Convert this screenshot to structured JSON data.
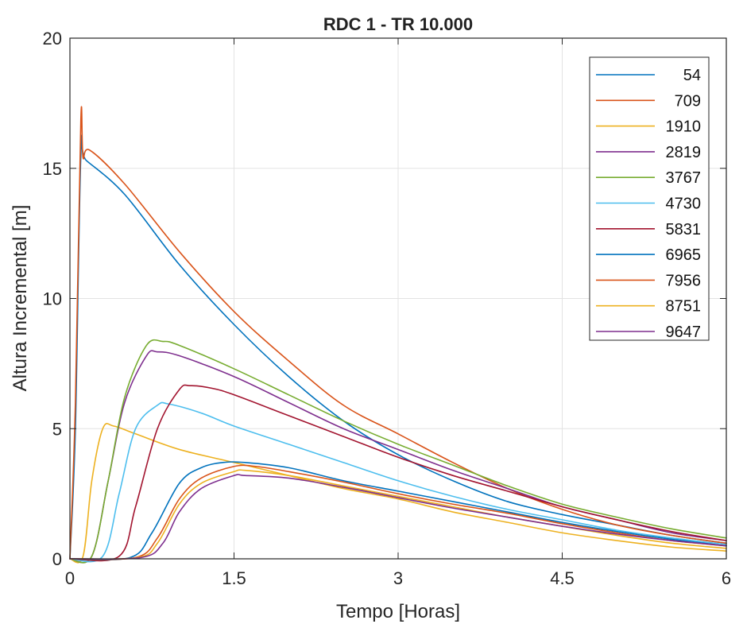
{
  "chart_data": {
    "type": "line",
    "title": "RDC 1 - TR 10.000",
    "xlabel": "Tempo [Horas]",
    "ylabel": "Altura Incremental [m]",
    "xlim": [
      0,
      6
    ],
    "ylim": [
      0,
      20
    ],
    "xticks": [
      "0",
      "1.5",
      "3",
      "4.5",
      "6"
    ],
    "xtick_values": [
      0,
      1.5,
      3,
      4.5,
      6
    ],
    "yticks": [
      "0",
      "5",
      "10",
      "15",
      "20"
    ],
    "ytick_values": [
      0,
      5,
      10,
      15,
      20
    ],
    "grid": true,
    "legend_position": "top-right",
    "series": [
      {
        "name": "54",
        "color": "#0072BD",
        "points": [
          [
            0,
            0
          ],
          [
            0.05,
            5
          ],
          [
            0.1,
            15.5
          ],
          [
            0.15,
            15.3
          ],
          [
            0.5,
            14.0
          ],
          [
            1.0,
            11.3
          ],
          [
            1.5,
            9.0
          ],
          [
            2.0,
            7.0
          ],
          [
            2.5,
            5.3
          ],
          [
            3.0,
            4.0
          ],
          [
            3.5,
            3.0
          ],
          [
            4.0,
            2.2
          ],
          [
            4.5,
            1.7
          ],
          [
            5.0,
            1.3
          ],
          [
            5.5,
            0.9
          ],
          [
            6.0,
            0.6
          ]
        ]
      },
      {
        "name": "709",
        "color": "#D95319",
        "points": [
          [
            0,
            0
          ],
          [
            0.05,
            6
          ],
          [
            0.1,
            16.9
          ],
          [
            0.12,
            15.4
          ],
          [
            0.18,
            15.7
          ],
          [
            0.5,
            14.4
          ],
          [
            1.0,
            11.8
          ],
          [
            1.5,
            9.5
          ],
          [
            2.0,
            7.6
          ],
          [
            2.5,
            5.9
          ],
          [
            3.0,
            4.8
          ],
          [
            3.5,
            3.7
          ],
          [
            4.0,
            2.7
          ],
          [
            4.5,
            1.9
          ],
          [
            5.0,
            1.3
          ],
          [
            5.5,
            0.9
          ],
          [
            6.0,
            0.6
          ]
        ]
      },
      {
        "name": "1910",
        "color": "#EDB120",
        "points": [
          [
            0,
            0
          ],
          [
            0.12,
            0.1
          ],
          [
            0.2,
            3.0
          ],
          [
            0.3,
            5.0
          ],
          [
            0.4,
            5.1
          ],
          [
            0.6,
            4.8
          ],
          [
            1.0,
            4.2
          ],
          [
            1.5,
            3.7
          ],
          [
            2.0,
            3.2
          ],
          [
            2.5,
            2.7
          ],
          [
            3.0,
            2.3
          ],
          [
            3.5,
            1.8
          ],
          [
            4.0,
            1.4
          ],
          [
            4.5,
            1.0
          ],
          [
            5.0,
            0.7
          ],
          [
            5.5,
            0.45
          ],
          [
            6.0,
            0.3
          ]
        ]
      },
      {
        "name": "2819",
        "color": "#7E2F8E",
        "points": [
          [
            0,
            0
          ],
          [
            0.2,
            0.1
          ],
          [
            0.35,
            3.0
          ],
          [
            0.5,
            6.0
          ],
          [
            0.7,
            7.8
          ],
          [
            0.8,
            7.95
          ],
          [
            1.0,
            7.8
          ],
          [
            1.5,
            7.0
          ],
          [
            2.0,
            6.0
          ],
          [
            2.5,
            5.0
          ],
          [
            3.0,
            4.2
          ],
          [
            3.5,
            3.4
          ],
          [
            4.0,
            2.7
          ],
          [
            4.5,
            2.0
          ],
          [
            5.0,
            1.5
          ],
          [
            5.5,
            1.0
          ],
          [
            6.0,
            0.7
          ]
        ]
      },
      {
        "name": "3767",
        "color": "#77AC30",
        "points": [
          [
            0,
            0
          ],
          [
            0.2,
            0.1
          ],
          [
            0.35,
            3.0
          ],
          [
            0.5,
            6.2
          ],
          [
            0.7,
            8.2
          ],
          [
            0.85,
            8.35
          ],
          [
            1.0,
            8.2
          ],
          [
            1.5,
            7.3
          ],
          [
            2.0,
            6.3
          ],
          [
            2.5,
            5.3
          ],
          [
            3.0,
            4.4
          ],
          [
            3.5,
            3.6
          ],
          [
            4.0,
            2.8
          ],
          [
            4.5,
            2.1
          ],
          [
            5.0,
            1.6
          ],
          [
            5.5,
            1.15
          ],
          [
            6.0,
            0.8
          ]
        ]
      },
      {
        "name": "4730",
        "color": "#4DBEEE",
        "points": [
          [
            0,
            0
          ],
          [
            0.3,
            0.1
          ],
          [
            0.45,
            2.5
          ],
          [
            0.6,
            5.0
          ],
          [
            0.8,
            5.9
          ],
          [
            0.9,
            5.95
          ],
          [
            1.2,
            5.6
          ],
          [
            1.5,
            5.1
          ],
          [
            2.0,
            4.4
          ],
          [
            2.5,
            3.7
          ],
          [
            3.0,
            3.0
          ],
          [
            3.5,
            2.4
          ],
          [
            4.0,
            1.9
          ],
          [
            4.5,
            1.5
          ],
          [
            5.0,
            1.1
          ],
          [
            5.5,
            0.8
          ],
          [
            6.0,
            0.55
          ]
        ]
      },
      {
        "name": "5831",
        "color": "#A2142F",
        "points": [
          [
            0,
            0
          ],
          [
            0.45,
            0.1
          ],
          [
            0.6,
            2.0
          ],
          [
            0.8,
            5.0
          ],
          [
            1.0,
            6.5
          ],
          [
            1.1,
            6.65
          ],
          [
            1.3,
            6.55
          ],
          [
            1.5,
            6.3
          ],
          [
            2.0,
            5.5
          ],
          [
            2.5,
            4.7
          ],
          [
            3.0,
            3.9
          ],
          [
            3.5,
            3.2
          ],
          [
            4.0,
            2.6
          ],
          [
            4.5,
            2.0
          ],
          [
            5.0,
            1.5
          ],
          [
            5.5,
            1.05
          ],
          [
            6.0,
            0.7
          ]
        ]
      },
      {
        "name": "6965",
        "color": "#0072BD",
        "points": [
          [
            0,
            0
          ],
          [
            0.55,
            0.05
          ],
          [
            0.75,
            1.0
          ],
          [
            1.0,
            2.9
          ],
          [
            1.2,
            3.5
          ],
          [
            1.4,
            3.7
          ],
          [
            1.6,
            3.7
          ],
          [
            2.0,
            3.5
          ],
          [
            2.5,
            3.0
          ],
          [
            3.0,
            2.6
          ],
          [
            3.5,
            2.2
          ],
          [
            4.0,
            1.8
          ],
          [
            4.5,
            1.4
          ],
          [
            5.0,
            1.05
          ],
          [
            5.5,
            0.75
          ],
          [
            6.0,
            0.5
          ]
        ]
      },
      {
        "name": "7956",
        "color": "#D95319",
        "points": [
          [
            0,
            0
          ],
          [
            0.6,
            0.05
          ],
          [
            0.8,
            0.8
          ],
          [
            1.0,
            2.3
          ],
          [
            1.2,
            3.1
          ],
          [
            1.5,
            3.55
          ],
          [
            1.7,
            3.55
          ],
          [
            2.0,
            3.35
          ],
          [
            2.5,
            2.95
          ],
          [
            3.0,
            2.5
          ],
          [
            3.5,
            2.1
          ],
          [
            4.0,
            1.75
          ],
          [
            4.5,
            1.35
          ],
          [
            5.0,
            1.0
          ],
          [
            5.5,
            0.7
          ],
          [
            6.0,
            0.5
          ]
        ]
      },
      {
        "name": "8751",
        "color": "#EDB120",
        "points": [
          [
            0,
            0
          ],
          [
            0.62,
            0.05
          ],
          [
            0.8,
            0.6
          ],
          [
            1.0,
            2.1
          ],
          [
            1.2,
            2.9
          ],
          [
            1.5,
            3.35
          ],
          [
            1.6,
            3.4
          ],
          [
            2.0,
            3.2
          ],
          [
            2.5,
            2.8
          ],
          [
            3.0,
            2.4
          ],
          [
            3.5,
            2.0
          ],
          [
            4.0,
            1.6
          ],
          [
            4.5,
            1.25
          ],
          [
            5.0,
            0.9
          ],
          [
            5.5,
            0.6
          ],
          [
            6.0,
            0.4
          ]
        ]
      },
      {
        "name": "9647",
        "color": "#7E2F8E",
        "points": [
          [
            0,
            0
          ],
          [
            0.65,
            0.05
          ],
          [
            0.85,
            0.6
          ],
          [
            1.0,
            1.8
          ],
          [
            1.2,
            2.7
          ],
          [
            1.5,
            3.2
          ],
          [
            1.6,
            3.2
          ],
          [
            2.0,
            3.1
          ],
          [
            2.5,
            2.75
          ],
          [
            3.0,
            2.35
          ],
          [
            3.5,
            1.95
          ],
          [
            4.0,
            1.6
          ],
          [
            4.5,
            1.25
          ],
          [
            5.0,
            0.95
          ],
          [
            5.5,
            0.7
          ],
          [
            6.0,
            0.5
          ]
        ]
      }
    ]
  }
}
